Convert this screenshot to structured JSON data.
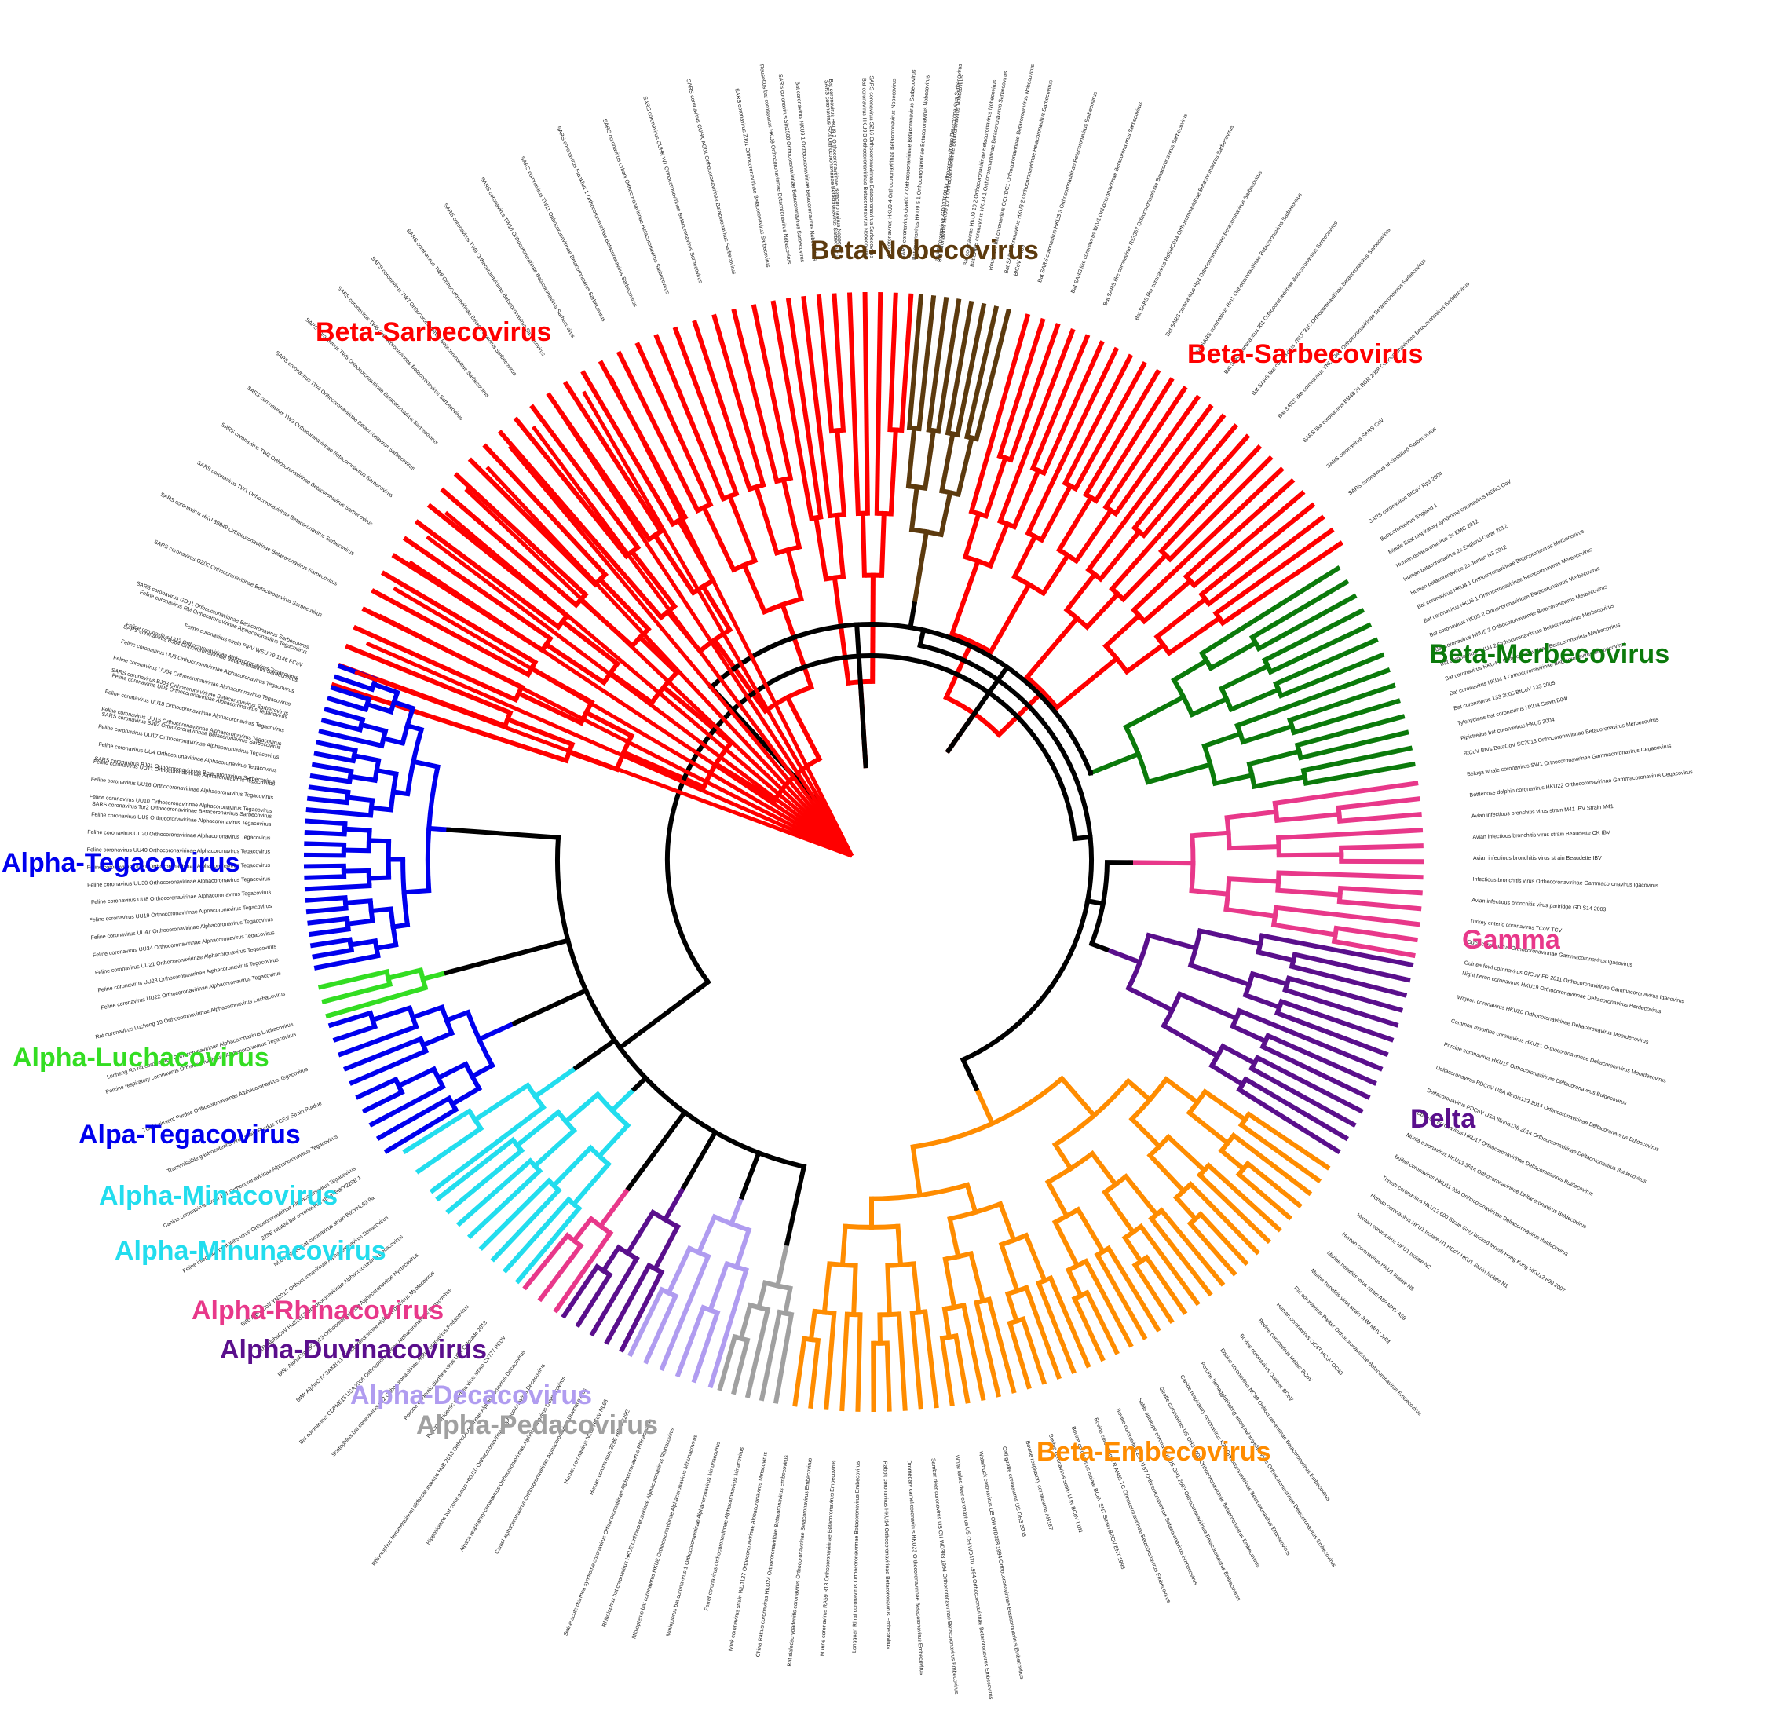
{
  "colors": {
    "sarbecovirus": "#ff0000",
    "nobecovirus": "#5c3a0e",
    "merbecovirus": "#0b7a0b",
    "gamma": "#e8388a",
    "delta": "#5a0f8c",
    "embecovirus": "#ff8c00",
    "tegacovirus": "#0000ee",
    "luchacovirus": "#33dd22",
    "minacovirus": "#22ddee",
    "rhinacovirus": "#e8388a",
    "duvinacovirus": "#5a0f8c",
    "decacovirus": "#b09cf0",
    "pedacovirus": "#a0a0a0",
    "backbone": "#000000"
  },
  "clade_labels": {
    "beta_sarbecovirus_left": "Beta-Sarbecovirus",
    "beta_nobecovirus": "Beta-Nobecovirus",
    "beta_sarbecovirus_right": "Beta-Sarbecovirus",
    "beta_merbecovirus": "Beta-Merbecovirus",
    "gamma": "Gamma",
    "delta": "Delta",
    "beta_embecovirus": "Beta-Embecovirus",
    "alpha_tegacovirus_top": "Alpha-Tegacovirus",
    "alpha_luchacovirus": "Alpha-Luchacovirus",
    "alpha_tegacovirus_bottom": "Alpa-Tegacovirus",
    "alpha_minacovirus": "Alpha-Minacovirus",
    "alpha_minunacovirus": "Alpha-Minunacovirus",
    "alpha_rhinacovirus": "Alpha-Rhinacovirus",
    "alpha_duvinacovirus": "Alpha-Duvinacovirus",
    "alpha_decacovirus": "Alpha-Decacovirus",
    "alpha_pedacovirus": "Alpha-Pedacovirus"
  },
  "leaf_labels": {
    "merbecovirus": [
      "Betacoronavirus England 1",
      "Middle East respiratory syndrome coronavirus MERS CoV",
      "Human betacoronavirus 2c EMC 2012",
      "Human betacoronavirus 2c England Qatar 2012",
      "Human betacoronavirus 2c Jordan N3 2012",
      "Bat coronavirus HKU4 1 Orthocoronavirinae Betacoronavirus Merbecovirus",
      "Bat coronavirus HKU5 1 Orthocoronavirinae Betacoronavirus Merbecovirus",
      "Bat coronavirus HKU5 2 Orthocoronavirinae Betacoronavirus Merbecovirus",
      "Bat coronavirus HKU5 3 Orthocoronavirinae Betacoronavirus Merbecovirus",
      "Bat coronavirus HKU4 2 Orthocoronavirinae Betacoronavirus Merbecovirus",
      "Bat coronavirus HKU4 3 Orthocoronavirinae Betacoronavirus Merbecovirus",
      "Bat coronavirus HKU4 4 Orthocoronavirinae Betacoronavirus Merbecovirus",
      "Bat coronavirus 133 2005 BtCoV 133 2005",
      "Tylonycteris bat coronavirus HKU4 Strain B04f",
      "Pipistrellus bat coronavirus HKU5 2004",
      "BtCoV BtVs BetaCoV SC2013 Orthocoronavirinae Betacoronavirus Merbecovirus"
    ],
    "gamma": [
      "Beluga whale coronavirus SW1 Orthocoronavirinae Gammacoronavirus Cegacovirus",
      "Bottlenose dolphin coronavirus HKU22 Orthocoronavirinae Gammacoronavirus Cegacovirus",
      "Avian infectious bronchitis virus strain M41 IBV Strain M41",
      "Avian infectious bronchitis virus strain Beaudette CK IBV",
      "Avian infectious bronchitis virus strain Beaudette IBV",
      "Infectious bronchitis virus Orthocoronavirinae Gammacoronavirus Igacovirus",
      "Avian infectious bronchitis virus partridge GD S14 2003",
      "Turkey enteric coronavirus TCoV TCV",
      "Duck coronavirus Orthocoronavirinae Gammacoronavirus Igacovirus",
      "Guinea fowl coronavirus GfCoV FR 2011 Orthocoronavirinae Gammacoronavirus Igacovirus"
    ],
    "delta": [
      "Night heron coronavirus HKU19 Orthocoronavirinae Deltacoronavirus Herdecovirus",
      "Wigeon coronavirus HKU20 Orthocoronavirinae Deltacoronavirus Moordecovirus",
      "Common moorhen coronavirus HKU21 Orthocoronavirinae Deltacoronavirus Moordecovirus",
      "Porcine coronavirus HKU15 Orthocoronavirinae Deltacoronavirus Buldecovirus",
      "Deltacoronavirus PDCoV USA Illinois133 2014 Orthocoronavirinae Deltacoronavirus Buldecovirus",
      "Deltacoronavirus PDCoV USA Illinois136 2014 Orthocoronavirinae Deltacoronavirus Buldecovirus",
      "Sparrow coronavirus HKU17 Orthocoronavirinae Deltacoronavirus Buldecovirus",
      "Munia coronavirus HKU13 3514 Orthocoronavirinae Deltacoronavirus Buldecovirus",
      "Bulbul coronavirus HKU11 934 Orthocoronavirinae Deltacoronavirus Buldecovirus",
      "Thrush coronavirus HKU12 600 Strain Grey backed thrush Hong Kong HKU12 600 2007"
    ],
    "embecovirus": [
      "Human coronavirus HKU1 Isolate N1 HCoV HKU1 Strain Isolate N1",
      "Human coronavirus HKU1 Isolate N2",
      "Human coronavirus HKU1 Isolate N5",
      "Murine hepatitis virus strain A59 MHV A59",
      "Murine hepatitis virus strain JHM MHV JHM",
      "Rat coronavirus Parker Orthocoronavirinae Betacoronavirus Embecovirus",
      "Human coronavirus OC43 HCoV OC43",
      "Bovine coronavirus Mebus BCoV",
      "Bovine coronavirus Quebec BCoV",
      "Equine coronavirus NC99 Orthocoronavirinae Betacoronavirus Embecovirus",
      "Porcine hemagglutinating encephalomyelitis virus Orthocoronavirinae Betacoronavirus Embecovirus",
      "Canine respiratory coronavirus K37 Orthocoronavirinae Betacoronavirus Embecovirus",
      "Giraffe coronavirus US OH3 2003 Orthocoronavirinae Betacoronavirus Embecovirus",
      "Sable antelope coronavirus US OH1 2003 Orthocoronavirinae Betacoronavirus Embecovirus",
      "Bovine coronavirus E AH187 Orthocoronavirinae Betacoronavirus Embecovirus",
      "Bovine coronavirus R AH65 TC Orthocoronavirinae Betacoronavirus Embecovirus",
      "Bovine coronavirus isolate BCoV ENT Strain BECV ENT 1998",
      "Bovine coronavirus strain LUN BCoV LUN",
      "Bovine respiratory coronavirus AH187",
      "Calf giraffe coronavirus US OH3 2006",
      "Waterbuck coronavirus US OH WD358 1994 Orthocoronavirinae Betacoronavirus Embecovirus",
      "White tailed deer coronavirus US OH WD470 1994 Orthocoronavirinae Betacoronavirus Embecovirus",
      "Sambar deer coronavirus US OH WD388 1994 Orthocoronavirinae Betacoronavirus Embecovirus",
      "Dromedary camel coronavirus HKU23 Orthocoronavirinae Betacoronavirus Embecovirus",
      "Rabbit coronavirus HKU14 Orthocoronavirinae Betacoronavirus Embecovirus",
      "Longquan Rl rat coronavirus Orthocoronavirinae Betacoronavirus Embecovirus",
      "Murine coronavirus RA59 R13 Orthocoronavirinae Betacoronavirus Embecovirus",
      "Rat sialodacryoadenitis coronavirus Orthocoronavirinae Betacoronavirus Embecovirus",
      "China Rattus coronavirus HKU24 Orthocoronavirinae Betacoronavirus Embecovirus"
    ],
    "tegacovirus_top": [
      "Feline coronavirus UU22 Orthocoronavirinae Alphacoronavirus Tegacovirus",
      "Feline coronavirus UU23 Orthocoronavirinae Alphacoronavirus Tegacovirus",
      "Feline coronavirus UU21 Orthocoronavirinae Alphacoronavirus Tegacovirus",
      "Feline coronavirus UU34 Orthocoronavirinae Alphacoronavirus Tegacovirus",
      "Feline coronavirus UU47 Orthocoronavirinae Alphacoronavirus Tegacovirus",
      "Feline coronavirus UU19 Orthocoronavirinae Alphacoronavirus Tegacovirus",
      "Feline coronavirus UU8 Orthocoronavirinae Alphacoronavirus Tegacovirus",
      "Feline coronavirus UU30 Orthocoronavirinae Alphacoronavirus Tegacovirus",
      "Feline coronavirus UU31 Orthocoronavirinae Alphacoronavirus Tegacovirus",
      "Feline coronavirus UU40 Orthocoronavirinae Alphacoronavirus Tegacovirus",
      "Feline coronavirus UU20 Orthocoronavirinae Alphacoronavirus Tegacovirus",
      "Feline coronavirus UU9 Orthocoronavirinae Alphacoronavirus Tegacovirus",
      "Feline coronavirus UU10 Orthocoronavirinae Alphacoronavirus Tegacovirus",
      "Feline coronavirus UU16 Orthocoronavirinae Alphacoronavirus Tegacovirus",
      "Feline coronavirus UU11 Orthocoronavirinae Alphacoronavirus Tegacovirus",
      "Feline coronavirus UU4 Orthocoronavirinae Alphacoronavirus Tegacovirus",
      "Feline coronavirus UU17 Orthocoronavirinae Alphacoronavirus Tegacovirus",
      "Feline coronavirus UU15 Orthocoronavirinae Alphacoronavirus Tegacovirus",
      "Feline coronavirus UU18 Orthocoronavirinae Alphacoronavirus Tegacovirus",
      "Feline coronavirus UU5 Orthocoronavirinae Alphacoronavirus Tegacovirus",
      "Feline coronavirus UU54 Orthocoronavirinae Alphacoronavirus Tegacovirus",
      "Feline coronavirus UU3 Orthocoronavirinae Alphacoronavirus Tegacovirus",
      "Feline coronavirus UU2 Orthocoronavirinae Alphacoronavirus Tegacovirus",
      "Feline coronavirus strain FIPV WSU 79 1146 FCoV",
      "Feline coronavirus RM Orthocoronavirinae Alphacoronavirus Tegacovirus"
    ],
    "luchacovirus": [
      "Lucheng Rn rat coronavirus Orthocoronavirinae Alphacoronavirus Luchacovirus",
      "Rat coronavirus Lucheng 19 Orthocoronavirinae Alphacoronavirus Luchacovirus"
    ],
    "tegacovirus_bottom": [
      "Feline infectious peritonitis virus Orthocoronavirinae Alphacoronavirus Tegacovirus",
      "Canine coronavirus strain 171 Orthocoronavirinae Alphacoronavirus Tegacovirus",
      "Transmissible gastroenteritis virus strain Purdue TGEV Strain Purdue",
      "TGEV virulent Purdue Orthocoronavirinae Alphacoronavirus Tegacovirus",
      "Porcine respiratory coronavirus Orthocoronavirinae Alphacoronavirus Tegacovirus"
    ],
    "alpha_misc": [
      "Mink coronavirus strain WD1127 Orthocoronavirinae Alphacoronavirus Minacovirus",
      "Ferret coronavirus Orthocoronavirinae Alphacoronavirus Minacovirus",
      "Miniopterus bat coronavirus 1 Orthocoronavirinae Alphacoronavirus Minunacovirus",
      "Miniopterus bat coronavirus HKU8 Orthocoronavirinae Alphacoronavirus Minunacovirus",
      "Rhinolophus bat coronavirus HKU2 Orthocoronavirinae Alphacoronavirus Rhinacovirus",
      "Swine acute diarrhea syndrome coronavirus Orthocoronavirinae Alphacoronavirus Rhinacovirus",
      "Human coronavirus 229E HCoV 229E",
      "Human coronavirus NL63 HCoV NL63",
      "Camel alphacoronavirus Orthocoronavirinae Alphacoronavirus Duvinacovirus",
      "Alpaca respiratory coronavirus Orthocoronavirinae Alphacoronavirus Duvinacovirus",
      "Hipposideros bat coronavirus HKU10 Orthocoronavirinae Alphacoronavirus Decacovirus",
      "Rhinolophus ferrumequinum alphacoronavirus HuB 2013 Orthocoronavirinae Alphacoronavirus Decacovirus",
      "Porcine epidemic diarrhea virus strain CV777 PEDV",
      "Porcine epidemic diarrhea virus USA Colorado 2013",
      "Scotophilus bat coronavirus 512 Orthocoronavirinae Alphacoronavirus Pedacovirus",
      "Bat coronavirus CDPHE15 USA 2006 Orthocoronavirinae Alphacoronavirus Pedacovirus",
      "BtMr AlphaCoV SAX2011 Orthocoronavirinae Alphacoronavirus Myotacovirus",
      "BtNv AlphaCoV SC2013 Orthocoronavirinae Alphacoronavirus Nyctacovirus",
      "BtRf AlphaCoV HuB2013 Orthocoronavirinae Alphacoronavirus Decacovirus",
      "BtRf AlphaCoV YN2012 Orthocoronavirinae Alphacoronavirus Decacovirus",
      "NL63 related bat coronavirus strain BtKYNL63 9a",
      "229E related bat coronavirus strain BtKY229E 1"
    ],
    "sarbecovirus": [
      "SARS coronavirus Tor2 Orthocoronavirinae Betacoronavirus Sarbecovirus",
      "SARS coronavirus BJ01 Orthocoronavirinae Betacoronavirus Sarbecovirus",
      "SARS coronavirus BJ02 Orthocoronavirinae Betacoronavirus Sarbecovirus",
      "SARS coronavirus BJ03 Orthocoronavirinae Betacoronavirus Sarbecovirus",
      "SARS coronavirus BJ04 Orthocoronavirinae Betacoronavirus Sarbecovirus",
      "SARS coronavirus GD01 Orthocoronavirinae Betacoronavirus Sarbecovirus",
      "SARS coronavirus GZ02 Orthocoronavirinae Betacoronavirus Sarbecovirus",
      "SARS coronavirus HKU 39849 Orthocoronavirinae Betacoronavirus Sarbecovirus",
      "SARS coronavirus TW1 Orthocoronavirinae Betacoronavirus Sarbecovirus",
      "SARS coronavirus TW2 Orthocoronavirinae Betacoronavirus Sarbecovirus",
      "SARS coronavirus TW3 Orthocoronavirinae Betacoronavirus Sarbecovirus",
      "SARS coronavirus TW4 Orthocoronavirinae Betacoronavirus Sarbecovirus",
      "SARS coronavirus TW5 Orthocoronavirinae Betacoronavirus Sarbecovirus",
      "SARS coronavirus TW6 Orthocoronavirinae Betacoronavirus Sarbecovirus",
      "SARS coronavirus TW7 Orthocoronavirinae Betacoronavirus Sarbecovirus",
      "SARS coronavirus TW8 Orthocoronavirinae Betacoronavirus Sarbecovirus",
      "SARS coronavirus TW9 Orthocoronavirinae Betacoronavirus Sarbecovirus",
      "SARS coronavirus TW10 Orthocoronavirinae Betacoronavirus Sarbecovirus",
      "SARS coronavirus TW11 Orthocoronavirinae Betacoronavirus Sarbecovirus",
      "SARS coronavirus Frankfurt 1 Orthocoronavirinae Betacoronavirus Sarbecovirus",
      "SARS coronavirus Urbani Orthocoronavirinae Betacoronavirus Sarbecovirus",
      "SARS coronavirus CUHK W1 Orthocoronavirinae Betacoronavirus Sarbecovirus",
      "SARS coronavirus CUHK AG01 Orthocoronavirinae Betacoronavirus Sarbecovirus",
      "SARS coronavirus ZJ01 Orthocoronavirinae Betacoronavirus Sarbecovirus",
      "SARS coronavirus Sin2500 Orthocoronavirinae Betacoronavirus Sarbecovirus",
      "SARS coronavirus SZ3 Orthocoronavirinae Betacoronavirus Sarbecovirus",
      "SARS coronavirus SZ16 Orthocoronavirinae Betacoronavirus Sarbecovirus",
      "SARS coronavirus civet007 Orthocoronavirinae Betacoronavirus Sarbecovirus",
      "SARS coronavirus GD03T0013 Orthocoronavirinae Betacoronavirus Sarbecovirus",
      "Bat SARS coronavirus HKU3 1 Orthocoronavirinae Betacoronavirus Sarbecovirus",
      "Bat SARS coronavirus HKU3 2 Orthocoronavirinae Betacoronavirus Sarbecovirus",
      "Bat SARS coronavirus HKU3 3 Orthocoronavirinae Betacoronavirus Sarbecovirus",
      "Bat SARS like coronavirus WIV1 Orthocoronavirinae Betacoronavirus Sarbecovirus",
      "Bat SARS like coronavirus Rs3367 Orthocoronavirinae Betacoronavirus Sarbecovirus",
      "Bat SARS like coronavirus RsSHC014 Orthocoronavirinae Betacoronavirus Sarbecovirus",
      "Bat SARS coronavirus Rp3 Orthocoronavirinae Betacoronavirus Sarbecovirus",
      "Bat SARS coronavirus Rm1 Orthocoronavirinae Betacoronavirus Sarbecovirus",
      "Bat SARS coronavirus Rf1 Orthocoronavirinae Betacoronavirus Sarbecovirus",
      "Bat SARS like coronavirus YNLF 31C Orthocoronavirinae Betacoronavirus Sarbecovirus",
      "Bat SARS like coronavirus YNLF 34C Orthocoronavirinae Betacoronavirus Sarbecovirus",
      "SARS like coronavirus BM48 31 BGR 2008 Orthocoronavirinae Betacoronavirus Sarbecovirus",
      "SARS coronavirus SARS CoV",
      "SARS coronavirus unclassified Sarbecovirus",
      "SARS coronavirus BtCoV Rp3 2004"
    ],
    "nobecovirus": [
      "Rousettus bat coronavirus HKU9 Orthocoronavirinae Betacoronavirus Nobecovirus",
      "Bat coronavirus HKU9 1 Orthocoronavirinae Betacoronavirus Nobecovirus",
      "Bat coronavirus HKU9 2 Orthocoronavirinae Betacoronavirus Nobecovirus",
      "Bat coronavirus HKU9 3 Orthocoronavirinae Betacoronavirus Nobecovirus",
      "Bat coronavirus HKU9 4 Orthocoronavirinae Betacoronavirus Nobecovirus",
      "Bat coronavirus HKU9 5 1 Orthocoronavirinae Betacoronavirus Nobecovirus",
      "Bat coronavirus HKU9 10 1 Orthocoronavirinae Betacoronavirus Nobecovirus",
      "Bat coronavirus HKU9 10 2 Orthocoronavirinae Betacoronavirus Nobecovirus",
      "Rousettus bat coronavirus GCCDC1 Orthocoronavirinae Betacoronavirus Nobecovirus",
      "BtCoV HKU9"
    ]
  }
}
